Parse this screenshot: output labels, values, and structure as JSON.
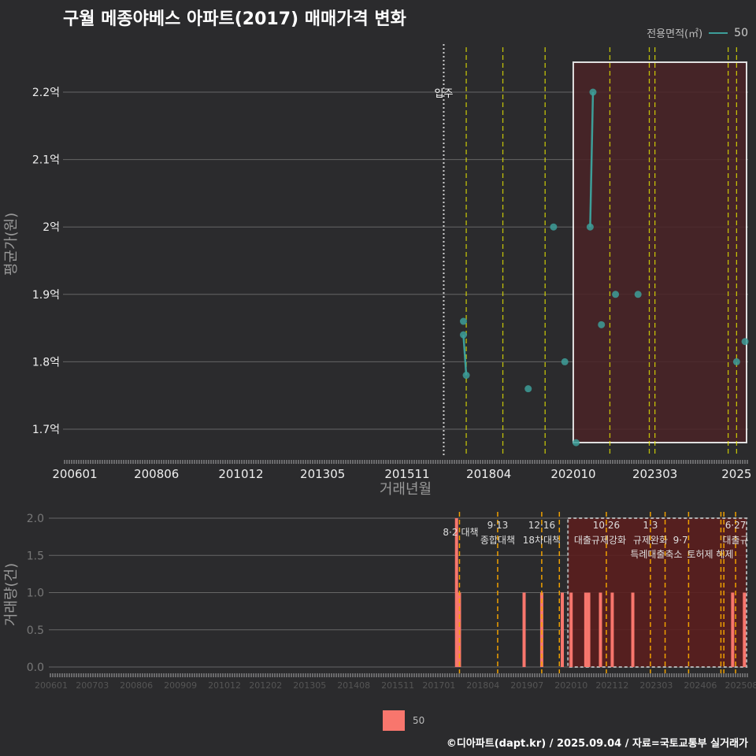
{
  "title": "구월 메종야베스 아파트(2017) 매매가격 변화",
  "legend": {
    "title": "전용면적(㎡)",
    "series": "50"
  },
  "footer": "©디아파트(dapt.kr) / 2025.09.04 / 자료=국토교통부 실거래가",
  "colors": {
    "line": "#3d9e99",
    "bar": "#f8766d",
    "policy": "#e6e600",
    "policy_bottom": "#f0a000",
    "shade": "#5a1e1e"
  },
  "chart_data": [
    {
      "type": "line",
      "title": "구월 메종야베스 아파트(2017) 매매가격 변화",
      "xlabel": "거래년월",
      "ylabel": "평균가(원)",
      "ylim": [
        1.65,
        2.25
      ],
      "yticks": [
        {
          "v": 1.7,
          "label": "1.7억"
        },
        {
          "v": 1.8,
          "label": "1.8억"
        },
        {
          "v": 1.9,
          "label": "1.9억"
        },
        {
          "v": 2.0,
          "label": "2억"
        },
        {
          "v": 2.1,
          "label": "2.1억"
        },
        {
          "v": 2.2,
          "label": "2.2억"
        }
      ],
      "xticks": [
        "200601",
        "200806",
        "201012",
        "201305",
        "201511",
        "201804",
        "202010",
        "202303",
        "2025"
      ],
      "move_in": {
        "month": "201612",
        "label": "입주"
      },
      "shaded_range": [
        "202010",
        "202509"
      ],
      "policy_months": [
        "201708",
        "201809",
        "201912",
        "202111",
        "202301",
        "202303",
        "202505",
        "202508"
      ],
      "points": [
        {
          "x": "201707",
          "y": 1.86
        },
        {
          "x": "201707",
          "y": 1.84
        },
        {
          "x": "201708",
          "y": 1.78
        },
        {
          "x": "201906",
          "y": 1.76
        },
        {
          "x": "202003",
          "y": 2.0
        },
        {
          "x": "202007",
          "y": 1.8
        },
        {
          "x": "202011",
          "y": 1.68
        },
        {
          "x": "202104",
          "y": 2.0
        },
        {
          "x": "202105",
          "y": 2.2
        },
        {
          "x": "202108",
          "y": 1.855
        },
        {
          "x": "202201",
          "y": 1.9
        },
        {
          "x": "202209",
          "y": 1.9
        },
        {
          "x": "202508",
          "y": 1.8
        },
        {
          "x": "202511",
          "y": 1.83
        }
      ],
      "lines": [
        [
          1,
          2
        ],
        [
          7,
          8
        ]
      ]
    },
    {
      "type": "bar",
      "xlabel": "",
      "ylabel": "거래량(건)",
      "ylim": [
        0,
        2
      ],
      "yticks": [
        "0.0",
        "0.5",
        "1.0",
        "1.5",
        "2.0"
      ],
      "xticks": [
        "200601",
        "200703",
        "200806",
        "200909",
        "201012",
        "201202",
        "201305",
        "201408",
        "201511",
        "201701",
        "201804",
        "201907",
        "202010",
        "202112",
        "202303",
        "202406",
        "202508"
      ],
      "shaded_range": [
        "202010",
        "202509"
      ],
      "bars": [
        {
          "x": "201707",
          "v": 2
        },
        {
          "x": "201708",
          "v": 1
        },
        {
          "x": "201906",
          "v": 1
        },
        {
          "x": "201912",
          "v": 1
        },
        {
          "x": "202007",
          "v": 1
        },
        {
          "x": "202010",
          "v": 1
        },
        {
          "x": "202103",
          "v": 1
        },
        {
          "x": "202104",
          "v": 1
        },
        {
          "x": "202108",
          "v": 1
        },
        {
          "x": "202112",
          "v": 1
        },
        {
          "x": "202207",
          "v": 1
        },
        {
          "x": "202505",
          "v": 1
        },
        {
          "x": "202509",
          "v": 1
        }
      ],
      "policies": [
        {
          "x": "201708",
          "date": "8·2",
          "name": "대책"
        },
        {
          "x": "201809",
          "date": "9·13",
          "name": "종합대책"
        },
        {
          "x": "201912",
          "date": "12·16",
          "name": "18차대책"
        },
        {
          "x": "202006",
          "date": "",
          "name": ""
        },
        {
          "x": "202110",
          "date": "10·26",
          "name": "대출규제강화"
        },
        {
          "x": "202301",
          "date": "1·3",
          "name": "규제완화"
        },
        {
          "x": "202306",
          "date": "9·7",
          "name": "특례대출축소"
        },
        {
          "x": "202314",
          "date": "",
          "name": "토허제 해제"
        },
        {
          "x": "202501",
          "date": "",
          "name": ""
        },
        {
          "x": "202502",
          "date": "",
          "name": ""
        },
        {
          "x": "202506",
          "date": "6·27",
          "name": "대출규"
        }
      ]
    }
  ]
}
